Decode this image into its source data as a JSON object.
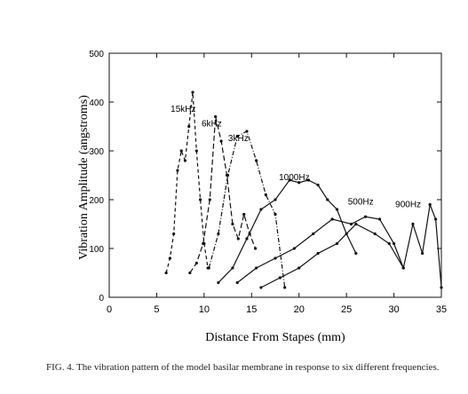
{
  "chart_data": {
    "type": "line",
    "xlabel": "Distance From Stapes (mm)",
    "ylabel": "Vibration Amplitude (angstroms)",
    "xlim": [
      0,
      35
    ],
    "ylim": [
      0,
      500
    ],
    "xticks": [
      0,
      5,
      10,
      15,
      20,
      25,
      30,
      35
    ],
    "yticks": [
      0,
      100,
      200,
      300,
      400,
      500
    ],
    "legend": "inline labels",
    "grid": false,
    "series": [
      {
        "name": "15kHz",
        "label_at": [
          7.8,
          380
        ],
        "dash": "4,3",
        "x": [
          6.0,
          6.4,
          6.8,
          7.2,
          7.6,
          8.0,
          8.4,
          8.8,
          9.2,
          9.6,
          10.0,
          10.4
        ],
        "y": [
          50,
          80,
          130,
          260,
          300,
          280,
          350,
          420,
          300,
          200,
          110,
          60
        ]
      },
      {
        "name": "6kHz",
        "label_at": [
          10.8,
          350
        ],
        "dash": "6,3",
        "x": [
          8.5,
          9.2,
          9.9,
          10.6,
          11.2,
          11.8,
          12.4,
          13.0,
          13.6,
          14.2,
          14.8,
          15.4
        ],
        "y": [
          50,
          70,
          110,
          200,
          370,
          320,
          250,
          150,
          120,
          170,
          130,
          100
        ]
      },
      {
        "name": "3kHz",
        "label_at": [
          13.6,
          320
        ],
        "dash": "5,2,1,2",
        "x": [
          10.5,
          11.5,
          12.5,
          13.5,
          14.5,
          15.5,
          16.5,
          17.5,
          18.5
        ],
        "y": [
          60,
          130,
          250,
          330,
          340,
          280,
          210,
          170,
          20
        ]
      },
      {
        "name": "1000Hz",
        "label_at": [
          19.5,
          240
        ],
        "dash": "",
        "x": [
          11.5,
          13.0,
          14.5,
          16.0,
          17.5,
          19.0,
          20.0,
          21.0,
          22.0,
          23.0,
          24.0,
          25.0,
          26.0
        ],
        "y": [
          30,
          60,
          120,
          180,
          200,
          240,
          235,
          240,
          230,
          200,
          180,
          130,
          90
        ]
      },
      {
        "name": "500Hz",
        "label_at": [
          26.5,
          190
        ],
        "dash": "",
        "x": [
          13.5,
          15.5,
          17.5,
          19.5,
          21.5,
          23.5,
          25.5,
          27.0,
          28.5,
          30.0,
          31.0
        ],
        "y": [
          30,
          60,
          80,
          100,
          130,
          160,
          150,
          165,
          160,
          110,
          60
        ]
      },
      {
        "name": "900Hz",
        "label_at": [
          31.5,
          185
        ],
        "dash": "",
        "x": [
          16.0,
          18.0,
          20.0,
          22.0,
          24.0,
          26.0,
          28.0,
          29.5,
          31.0,
          32.0,
          33.0,
          33.8,
          34.4,
          35.0
        ],
        "y": [
          20,
          40,
          60,
          90,
          110,
          150,
          130,
          110,
          60,
          150,
          90,
          190,
          160,
          20
        ]
      }
    ]
  },
  "caption": "FIG. 4. The vibration pattern of the model basilar membrane in response to six different frequencies."
}
